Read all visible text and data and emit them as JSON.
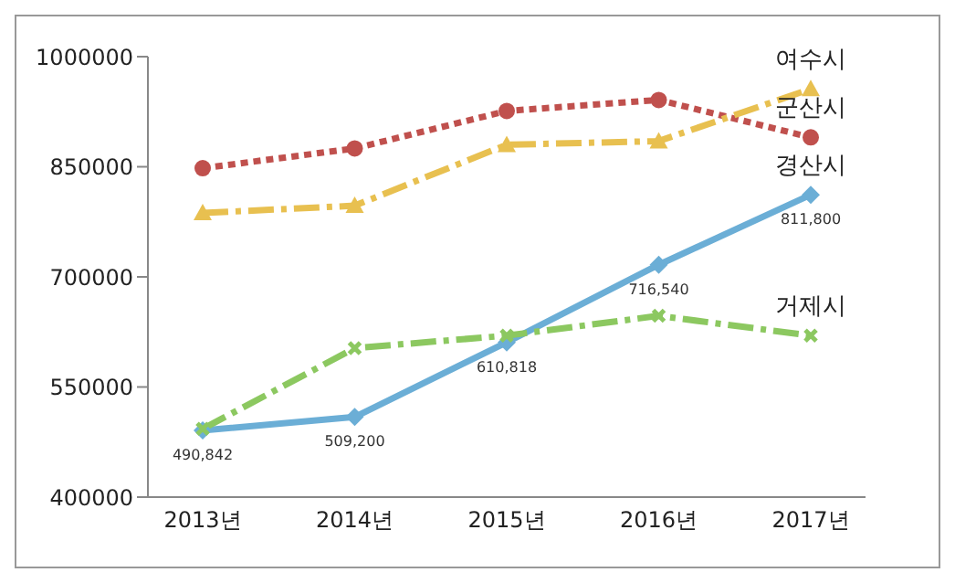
{
  "chart_data": {
    "type": "line",
    "categories": [
      "2013년",
      "2014년",
      "2015년",
      "2016년",
      "2017년"
    ],
    "ylim": [
      400000,
      1000000
    ],
    "yticks": [
      400000,
      550000,
      700000,
      850000,
      1000000
    ],
    "series": [
      {
        "name": "군산시",
        "color": "#c0504d",
        "values": [
          848000,
          875000,
          926000,
          941000,
          890000
        ],
        "line_style": "dotted",
        "marker": "circle"
      },
      {
        "name": "여수시",
        "color": "#e8c050",
        "values": [
          787000,
          797000,
          880000,
          885000,
          956000
        ],
        "line_style": "dashed",
        "marker": "triangle"
      },
      {
        "name": "경산시",
        "color": "#6baed6",
        "values": [
          490842,
          509200,
          610818,
          716540,
          811800
        ],
        "line_style": "solid",
        "marker": "diamond",
        "value_labels": [
          "490,842",
          "509,200",
          "610,818",
          "716,540",
          "811,800"
        ]
      },
      {
        "name": "거제시",
        "color": "#8cc860",
        "values": [
          493000,
          603000,
          620000,
          647000,
          620000
        ],
        "line_style": "dashed",
        "marker": "cross"
      }
    ]
  }
}
